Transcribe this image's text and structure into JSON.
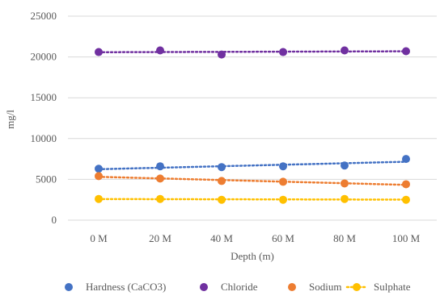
{
  "chart_data": {
    "type": "scatter",
    "title": "",
    "xlabel": "Depth (m)",
    "ylabel": "mg/l",
    "categories": [
      "0 M",
      "20 M",
      "40 M",
      "60 M",
      "80 M",
      "100 M"
    ],
    "ylim": [
      0,
      25000
    ],
    "yticks": [
      0,
      5000,
      10000,
      15000,
      20000,
      25000
    ],
    "grid": "horizontal",
    "legend": "bottom",
    "trendlines": "linear dotted",
    "series": [
      {
        "name": "Hardness (CaCO3)",
        "color": "#4472C4",
        "values": [
          6300,
          6600,
          6500,
          6600,
          6700,
          7500
        ]
      },
      {
        "name": "Chloride",
        "color": "#7030A0",
        "values": [
          20600,
          20800,
          20300,
          20600,
          20800,
          20700
        ]
      },
      {
        "name": "Sodium",
        "color": "#ED7D31",
        "values": [
          5400,
          5100,
          4800,
          4700,
          4500,
          4400
        ]
      },
      {
        "name": "Sulphate",
        "color": "#FFC000",
        "values": [
          2600,
          2600,
          2500,
          2500,
          2600,
          2500
        ]
      }
    ]
  }
}
